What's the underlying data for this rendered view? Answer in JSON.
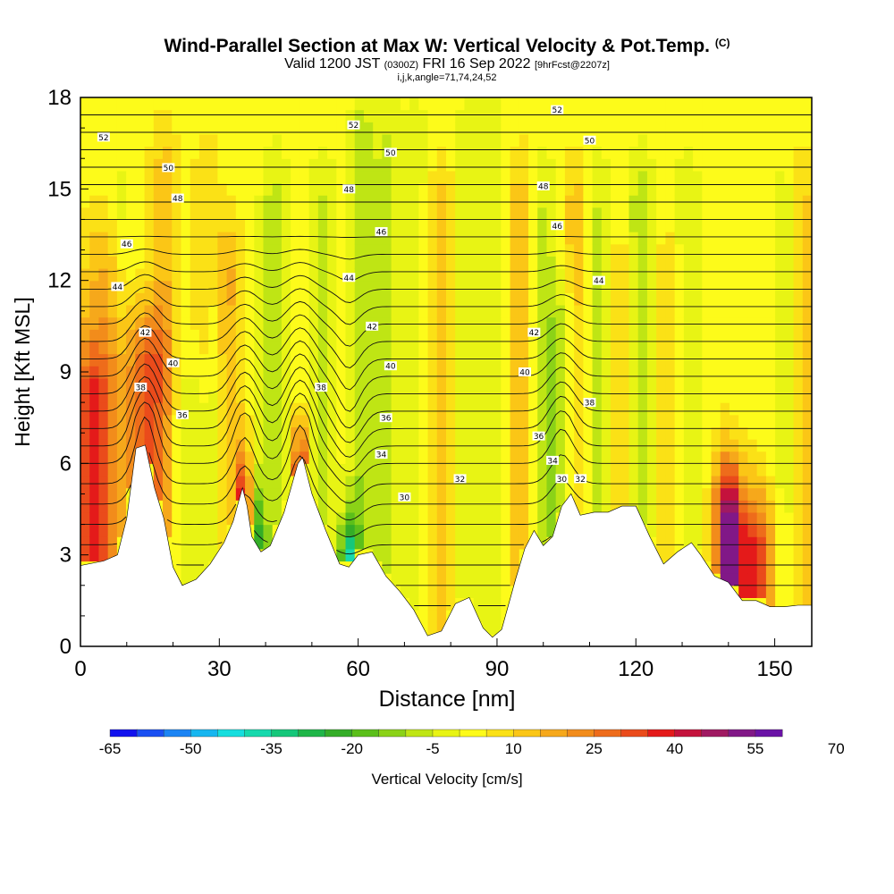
{
  "chart_data": {
    "type": "heatmap",
    "title": "Wind-Parallel Section at Max W: Vertical Velocity & Pot.Temp.",
    "title_mark": "(C)",
    "subtitle_valid": "Valid 1200 JST",
    "subtitle_z": "(0300Z)",
    "subtitle_date": "FRI 16 Sep 2022",
    "subtitle_fcst": "[9hrFcst@2207z]",
    "subtitle_ijk": "i,j,k,angle=71,74,24,52",
    "xlabel": "Distance [nm]",
    "ylabel": "Height [Kft MSL]",
    "xlim": [
      0,
      158
    ],
    "ylim": [
      0,
      18
    ],
    "xticks": [
      "0",
      "30",
      "60",
      "90",
      "120",
      "150"
    ],
    "yticks": [
      "0",
      "3",
      "6",
      "9",
      "12",
      "15",
      "18"
    ],
    "colorbar": {
      "label": "Vertical Velocity [cm/s]",
      "tick_labels": [
        "-65",
        "-50",
        "-35",
        "-20",
        "-5",
        "10",
        "25",
        "40",
        "55",
        "70"
      ],
      "colors": [
        "#1111ee",
        "#1a4ff2",
        "#1b84f4",
        "#16b6f0",
        "#16dede",
        "#16d9ad",
        "#15c77a",
        "#1fb648",
        "#34ad27",
        "#5bbf1a",
        "#8bd217",
        "#bfe514",
        "#e8f414",
        "#fdfb1a",
        "#fbe116",
        "#fbc616",
        "#f6a81b",
        "#f28c1b",
        "#ee6c1b",
        "#ea4b1b",
        "#e41a1a",
        "#c4123c",
        "#a01a62",
        "#811887",
        "#6a12a6"
      ]
    },
    "terrain": [
      [
        0,
        2.65
      ],
      [
        5,
        2.8
      ],
      [
        8,
        3.0
      ],
      [
        10,
        4.2
      ],
      [
        12,
        6.5
      ],
      [
        14,
        6.6
      ],
      [
        16,
        5.2
      ],
      [
        18,
        4.2
      ],
      [
        20,
        2.6
      ],
      [
        22,
        2.0
      ],
      [
        25,
        2.2
      ],
      [
        28,
        2.7
      ],
      [
        31,
        3.4
      ],
      [
        33,
        4.1
      ],
      [
        35,
        5.2
      ],
      [
        36,
        4.6
      ],
      [
        37,
        3.6
      ],
      [
        39,
        3.1
      ],
      [
        41,
        3.3
      ],
      [
        44,
        4.4
      ],
      [
        47,
        6.0
      ],
      [
        48,
        6.2
      ],
      [
        50,
        5.0
      ],
      [
        53,
        3.8
      ],
      [
        56,
        2.7
      ],
      [
        58,
        2.6
      ],
      [
        60,
        3.0
      ],
      [
        63,
        3.1
      ],
      [
        66,
        2.3
      ],
      [
        69,
        1.8
      ],
      [
        72,
        1.2
      ],
      [
        75,
        0.35
      ],
      [
        78,
        0.5
      ],
      [
        81,
        1.4
      ],
      [
        84,
        1.6
      ],
      [
        87,
        0.6
      ],
      [
        89,
        0.3
      ],
      [
        91,
        0.55
      ],
      [
        94,
        2.2
      ],
      [
        96,
        3.2
      ],
      [
        98,
        3.8
      ],
      [
        100,
        3.3
      ],
      [
        102,
        3.6
      ],
      [
        104,
        4.6
      ],
      [
        106,
        5.0
      ],
      [
        108,
        4.3
      ],
      [
        111,
        4.4
      ],
      [
        114,
        4.4
      ],
      [
        117,
        4.6
      ],
      [
        120,
        4.6
      ],
      [
        123,
        3.6
      ],
      [
        126,
        2.7
      ],
      [
        129,
        3.1
      ],
      [
        132,
        3.4
      ],
      [
        134,
        3.0
      ],
      [
        137,
        2.3
      ],
      [
        140,
        2.1
      ],
      [
        143,
        1.5
      ],
      [
        146,
        1.5
      ],
      [
        149,
        1.3
      ],
      [
        152,
        1.3
      ],
      [
        155,
        1.35
      ],
      [
        158,
        1.35
      ]
    ],
    "w_field": {
      "background": 8,
      "columns": [
        [
          2,
          25,
          5,
          8
        ],
        [
          5,
          15,
          5,
          12
        ],
        [
          9,
          -6,
          3,
          14
        ],
        [
          14,
          28,
          5,
          9
        ],
        [
          18,
          12,
          3,
          15
        ],
        [
          24,
          -12,
          5,
          7
        ],
        [
          27,
          6,
          3,
          15
        ],
        [
          29,
          -8,
          2,
          10
        ],
        [
          32,
          14,
          3,
          12
        ],
        [
          35.5,
          60,
          1.4,
          4
        ],
        [
          37.5,
          -35,
          2.2,
          3
        ],
        [
          42,
          -12,
          3,
          14
        ],
        [
          47.5,
          50,
          1.8,
          5
        ],
        [
          52,
          -10,
          3,
          14
        ],
        [
          58,
          -50,
          2,
          2
        ],
        [
          61,
          -14,
          2.5,
          16
        ],
        [
          66,
          -9,
          2.5,
          16
        ],
        [
          72,
          -6,
          4,
          16
        ],
        [
          78,
          14,
          3,
          14
        ],
        [
          84,
          -7,
          4,
          16
        ],
        [
          90,
          -5,
          3,
          16
        ],
        [
          95,
          14,
          3,
          14
        ],
        [
          100,
          -10,
          3,
          14
        ],
        [
          104,
          -14,
          3,
          10
        ],
        [
          107,
          12,
          3,
          14
        ],
        [
          112,
          -10,
          3,
          14
        ],
        [
          117,
          10,
          3,
          12
        ],
        [
          121,
          -14,
          3,
          14
        ],
        [
          127,
          8,
          3,
          12
        ],
        [
          131,
          -8,
          3,
          14
        ],
        [
          140,
          55,
          3,
          4
        ],
        [
          146,
          35,
          4,
          3
        ],
        [
          152,
          -6,
          3,
          14
        ],
        [
          156,
          12,
          2,
          14
        ]
      ]
    },
    "theta_contours": [
      {
        "label": "30",
        "x": 70,
        "y": 4.9
      },
      {
        "label": "30",
        "x": 104,
        "y": 5.5
      },
      {
        "label": "32",
        "x": 82,
        "y": 5.5
      },
      {
        "label": "32",
        "x": 108,
        "y": 5.5
      },
      {
        "label": "34",
        "x": 65,
        "y": 6.3
      },
      {
        "label": "34",
        "x": 102,
        "y": 6.1
      },
      {
        "label": "36",
        "x": 22,
        "y": 7.6
      },
      {
        "label": "36",
        "x": 66,
        "y": 7.5
      },
      {
        "label": "36",
        "x": 99,
        "y": 6.9
      },
      {
        "label": "38",
        "x": 52,
        "y": 8.5
      },
      {
        "label": "38",
        "x": 110,
        "y": 8.0
      },
      {
        "label": "38",
        "x": 13,
        "y": 8.5
      },
      {
        "label": "40",
        "x": 20,
        "y": 9.3
      },
      {
        "label": "40",
        "x": 67,
        "y": 9.2
      },
      {
        "label": "40",
        "x": 96,
        "y": 9.0
      },
      {
        "label": "42",
        "x": 14,
        "y": 10.3
      },
      {
        "label": "42",
        "x": 63,
        "y": 10.5
      },
      {
        "label": "42",
        "x": 98,
        "y": 10.3
      },
      {
        "label": "44",
        "x": 8,
        "y": 11.8
      },
      {
        "label": "44",
        "x": 58,
        "y": 12.1
      },
      {
        "label": "44",
        "x": 112,
        "y": 12.0
      },
      {
        "label": "46",
        "x": 10,
        "y": 13.2
      },
      {
        "label": "46",
        "x": 65,
        "y": 13.6
      },
      {
        "label": "46",
        "x": 103,
        "y": 13.8
      },
      {
        "label": "48",
        "x": 21,
        "y": 14.7
      },
      {
        "label": "48",
        "x": 58,
        "y": 15.0
      },
      {
        "label": "48",
        "x": 100,
        "y": 15.1
      },
      {
        "label": "50",
        "x": 19,
        "y": 15.7
      },
      {
        "label": "50",
        "x": 67,
        "y": 16.2
      },
      {
        "label": "50",
        "x": 110,
        "y": 16.6
      },
      {
        "label": "52",
        "x": 5,
        "y": 16.7
      },
      {
        "label": "52",
        "x": 59,
        "y": 17.1
      },
      {
        "label": "52",
        "x": 103,
        "y": 17.6
      }
    ]
  }
}
